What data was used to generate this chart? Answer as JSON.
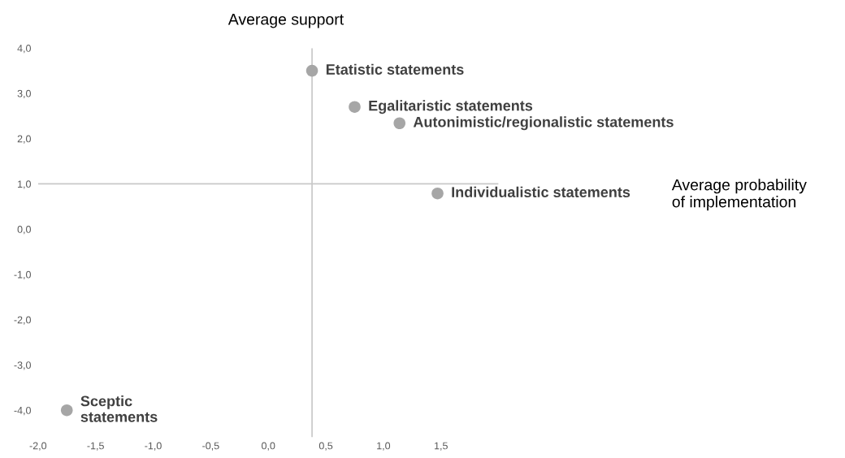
{
  "chart_data": {
    "type": "scatter",
    "annotations": [
      "Average probability\nof implementation"
    ],
    "ylabel": "Average support",
    "xlim": [
      -2.0,
      2.0
    ],
    "ylim": [
      -4.6,
      4.0
    ],
    "xticks": [
      {
        "value": -2.0,
        "label": "-2,0"
      },
      {
        "value": -1.5,
        "label": "-1,5"
      },
      {
        "value": -1.0,
        "label": "-1,0"
      },
      {
        "value": -0.5,
        "label": "-0,5"
      },
      {
        "value": 0.0,
        "label": "0,0"
      },
      {
        "value": 0.5,
        "label": "0,5"
      },
      {
        "value": 1.0,
        "label": "1,0"
      },
      {
        "value": 1.5,
        "label": "1,5"
      }
    ],
    "yticks": [
      {
        "value": -4.0,
        "label": "-4,0"
      },
      {
        "value": -3.0,
        "label": "-3,0"
      },
      {
        "value": -2.0,
        "label": "-2,0"
      },
      {
        "value": -1.0,
        "label": "-1,0"
      },
      {
        "value": 0.0,
        "label": "0,0"
      },
      {
        "value": 1.0,
        "label": "1,0"
      },
      {
        "value": 2.0,
        "label": "2,0"
      },
      {
        "value": 3.0,
        "label": "3,0"
      },
      {
        "value": 4.0,
        "label": "4,0"
      }
    ],
    "ref_lines": [
      {
        "axis": "x",
        "value": 0.38,
        "color": "#c8c8c8"
      },
      {
        "axis": "y",
        "value": 1.0,
        "color": "#c8c8c8"
      }
    ],
    "grid": false,
    "legend": false,
    "marker": "circle",
    "series": [
      {
        "name": "Etatistic statements",
        "color": "#a6a6a6",
        "x": [
          0.38
        ],
        "values": [
          3.5
        ]
      },
      {
        "name": "Egalitaristic statements",
        "color": "#a6a6a6",
        "x": [
          0.75
        ],
        "values": [
          2.7
        ]
      },
      {
        "name": "Autonimistic/regionalistic statements",
        "color": "#a6a6a6",
        "x": [
          1.14
        ],
        "values": [
          2.34
        ]
      },
      {
        "name": "Individualistic statements",
        "color": "#a6a6a6",
        "x": [
          1.47
        ],
        "values": [
          0.79
        ]
      },
      {
        "name": "Sceptic\nstatements",
        "color": "#a6a6a6",
        "x": [
          -1.75
        ],
        "values": [
          -4.0
        ]
      }
    ]
  }
}
